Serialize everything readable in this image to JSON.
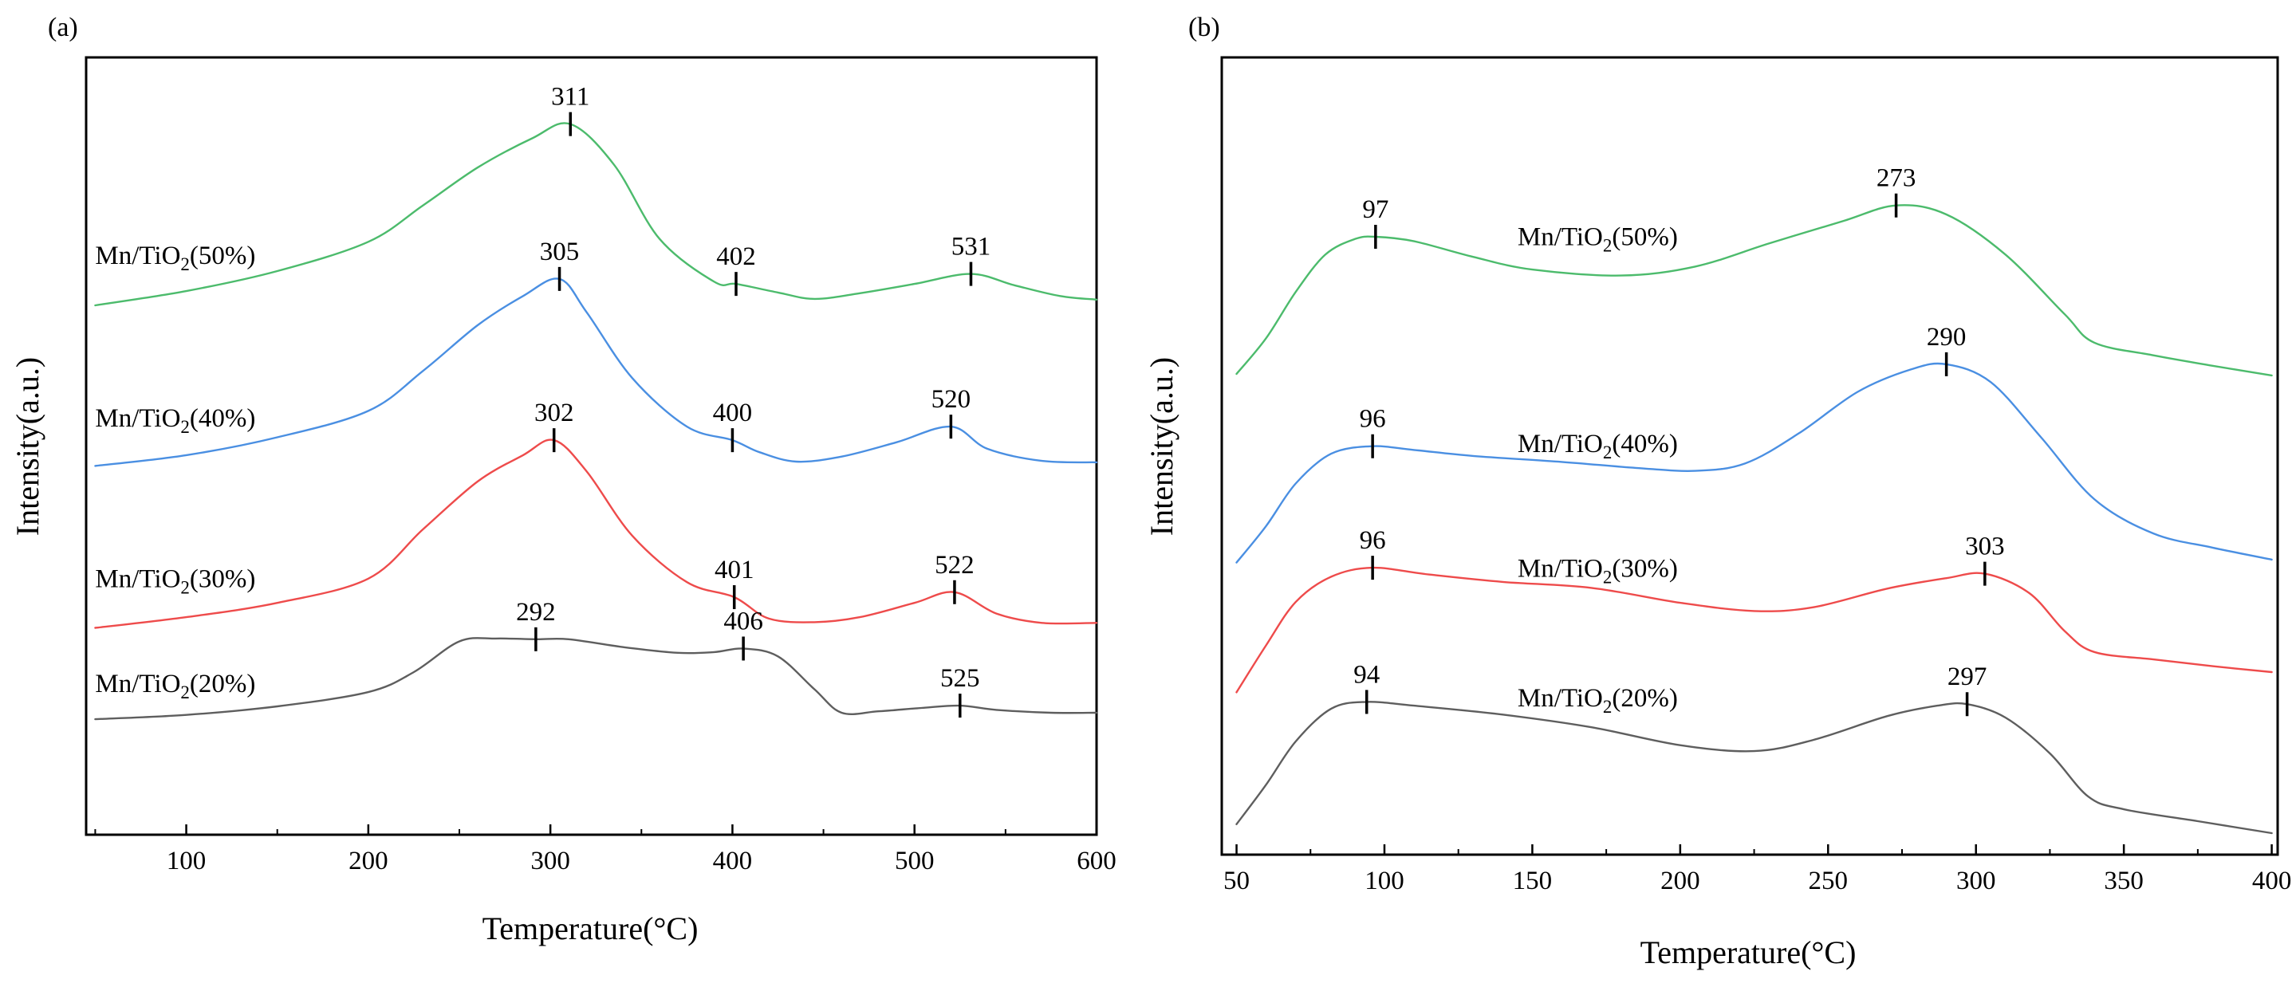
{
  "chart_data": [
    {
      "panel_label": "(a)",
      "type": "line",
      "xlabel": "Temperature(°C)",
      "ylabel": "Intensity(a.u.)",
      "xlim": [
        45,
        600
      ],
      "ylim": [
        0,
        100
      ],
      "x_ticks": [
        100,
        200,
        300,
        400,
        500,
        600
      ],
      "x_tick_labels": [
        "100",
        "200",
        "300",
        "400",
        "500",
        "600"
      ],
      "minor_x_ticks": [
        50,
        150,
        250,
        350,
        450,
        550
      ],
      "y_ticks_shown": false,
      "series": [
        {
          "name": "Mn/TiO2(50%)",
          "label_main": "Mn/TiO",
          "label_sub": "2",
          "label_suffix": "(50%)",
          "label_at": [
            50,
            75.3
          ],
          "color": "#4cbb6c",
          "points": [
            [
              50,
              69.5
            ],
            [
              100,
              71.5
            ],
            [
              150,
              74.3
            ],
            [
              200,
              78.4
            ],
            [
              230,
              83.5
            ],
            [
              260,
              88.8
            ],
            [
              290,
              92.9
            ],
            [
              311,
              94.9
            ],
            [
              335,
              89.2
            ],
            [
              360,
              78.8
            ],
            [
              390,
              72.8
            ],
            [
              402,
              72.5
            ],
            [
              425,
              71.3
            ],
            [
              445,
              70.4
            ],
            [
              470,
              71.2
            ],
            [
              500,
              72.5
            ],
            [
              531,
              73.9
            ],
            [
              555,
              72.3
            ],
            [
              580,
              70.8
            ],
            [
              600,
              70.3
            ]
          ],
          "peaks": [
            {
              "x": 311,
              "label": "311"
            },
            {
              "x": 402,
              "label": "402"
            },
            {
              "x": 531,
              "label": "531"
            }
          ]
        },
        {
          "name": "Mn/TiO2(40%)",
          "label_main": "Mn/TiO",
          "label_sub": "2",
          "label_suffix": "(40%)",
          "label_at": [
            50,
            52.5
          ],
          "color": "#4a8fe2",
          "points": [
            [
              50,
              47.0
            ],
            [
              100,
              48.5
            ],
            [
              150,
              51.0
            ],
            [
              200,
              54.7
            ],
            [
              230,
              60.3
            ],
            [
              260,
              66.7
            ],
            [
              285,
              70.8
            ],
            [
              305,
              73.2
            ],
            [
              320,
              68.5
            ],
            [
              345,
              59.3
            ],
            [
              375,
              52.5
            ],
            [
              400,
              50.6
            ],
            [
              415,
              48.9
            ],
            [
              435,
              47.6
            ],
            [
              460,
              48.3
            ],
            [
              490,
              50.3
            ],
            [
              520,
              52.5
            ],
            [
              540,
              49.4
            ],
            [
              570,
              47.7
            ],
            [
              600,
              47.5
            ]
          ],
          "peaks": [
            {
              "x": 305,
              "label": "305"
            },
            {
              "x": 400,
              "label": "400"
            },
            {
              "x": 520,
              "label": "520"
            }
          ]
        },
        {
          "name": "Mn/TiO2(30%)",
          "label_main": "Mn/TiO",
          "label_sub": "2",
          "label_suffix": "(30%)",
          "label_at": [
            50,
            30.0
          ],
          "color": "#ee4b4b",
          "points": [
            [
              50,
              24.3
            ],
            [
              100,
              25.8
            ],
            [
              150,
              27.8
            ],
            [
              200,
              31.2
            ],
            [
              230,
              38.1
            ],
            [
              260,
              44.8
            ],
            [
              285,
              48.5
            ],
            [
              302,
              50.6
            ],
            [
              320,
              46.2
            ],
            [
              345,
              37.2
            ],
            [
              375,
              30.7
            ],
            [
              401,
              28.6
            ],
            [
              420,
              25.6
            ],
            [
              445,
              25.1
            ],
            [
              470,
              25.8
            ],
            [
              500,
              27.8
            ],
            [
              522,
              29.3
            ],
            [
              545,
              26.3
            ],
            [
              570,
              25.0
            ],
            [
              600,
              25.0
            ]
          ],
          "peaks": [
            {
              "x": 302,
              "label": "302"
            },
            {
              "x": 401,
              "label": "401"
            },
            {
              "x": 522,
              "label": "522"
            }
          ]
        },
        {
          "name": "Mn/TiO2(20%)",
          "label_main": "Mn/TiO",
          "label_sub": "2",
          "label_suffix": "(20%)",
          "label_at": [
            50,
            15.3
          ],
          "color": "#5e5e5e",
          "points": [
            [
              50,
              11.5
            ],
            [
              100,
              12.1
            ],
            [
              150,
              13.3
            ],
            [
              200,
              15.3
            ],
            [
              225,
              18.1
            ],
            [
              250,
              22.4
            ],
            [
              270,
              22.8
            ],
            [
              292,
              22.7
            ],
            [
              310,
              22.7
            ],
            [
              340,
              21.6
            ],
            [
              370,
              20.8
            ],
            [
              390,
              20.9
            ],
            [
              406,
              21.4
            ],
            [
              425,
              20.3
            ],
            [
              445,
              15.7
            ],
            [
              460,
              12.4
            ],
            [
              480,
              12.6
            ],
            [
              505,
              13.1
            ],
            [
              525,
              13.4
            ],
            [
              545,
              12.8
            ],
            [
              575,
              12.4
            ],
            [
              600,
              12.4
            ]
          ],
          "peaks": [
            {
              "x": 292,
              "label": "292"
            },
            {
              "x": 406,
              "label": "406"
            },
            {
              "x": 525,
              "label": "525"
            }
          ]
        }
      ]
    },
    {
      "panel_label": "(b)",
      "type": "line",
      "xlabel": "Temperature(°C)",
      "ylabel": "Intensity(a.u.)",
      "xlim": [
        45,
        402
      ],
      "ylim": [
        0,
        100
      ],
      "x_ticks": [
        50,
        100,
        150,
        200,
        250,
        300,
        350,
        400
      ],
      "x_tick_labels": [
        "50",
        "100",
        "150",
        "200",
        "250",
        "300",
        "350",
        "400"
      ],
      "minor_x_ticks": [
        75,
        125,
        175,
        225,
        275,
        325,
        375
      ],
      "y_ticks_shown": false,
      "series": [
        {
          "name": "Mn/TiO2(50%)",
          "label_main": "Mn/TiO",
          "label_sub": "2",
          "label_suffix": "(50%)",
          "label_at": [
            145,
            78.9
          ],
          "color": "#4cbb6c",
          "points": [
            [
              50,
              61.6
            ],
            [
              60,
              66.4
            ],
            [
              70,
              72.6
            ],
            [
              80,
              77.6
            ],
            [
              90,
              79.7
            ],
            [
              97,
              80.0
            ],
            [
              110,
              79.4
            ],
            [
              130,
              77.3
            ],
            [
              150,
              75.6
            ],
            [
              180,
              74.8
            ],
            [
              205,
              76.0
            ],
            [
              230,
              79.1
            ],
            [
              255,
              82.1
            ],
            [
              273,
              84.2
            ],
            [
              290,
              83.0
            ],
            [
              310,
              77.6
            ],
            [
              330,
              69.6
            ],
            [
              340,
              65.8
            ],
            [
              360,
              64.1
            ],
            [
              380,
              62.7
            ],
            [
              400,
              61.4
            ]
          ],
          "peaks": [
            {
              "x": 97,
              "label": "97"
            },
            {
              "x": 273,
              "label": "273"
            }
          ]
        },
        {
          "name": "Mn/TiO2(40%)",
          "label_main": "Mn/TiO",
          "label_sub": "2",
          "label_suffix": "(40%)",
          "label_at": [
            145,
            51.1
          ],
          "color": "#4a8fe2",
          "points": [
            [
              50,
              36.3
            ],
            [
              60,
              41.2
            ],
            [
              70,
              46.9
            ],
            [
              82,
              50.9
            ],
            [
              96,
              51.9
            ],
            [
              110,
              51.4
            ],
            [
              130,
              50.6
            ],
            [
              160,
              49.8
            ],
            [
              185,
              49.0
            ],
            [
              205,
              48.6
            ],
            [
              222,
              49.6
            ],
            [
              240,
              53.6
            ],
            [
              260,
              59.2
            ],
            [
              278,
              62.2
            ],
            [
              290,
              62.9
            ],
            [
              305,
              60.5
            ],
            [
              322,
              53.1
            ],
            [
              340,
              44.8
            ],
            [
              360,
              40.2
            ],
            [
              380,
              38.3
            ],
            [
              400,
              36.7
            ]
          ],
          "peaks": [
            {
              "x": 96,
              "label": "96"
            },
            {
              "x": 290,
              "label": "290"
            }
          ]
        },
        {
          "name": "Mn/TiO2(30%)",
          "label_main": "Mn/TiO",
          "label_sub": "2",
          "label_suffix": "(30%)",
          "label_at": [
            145,
            34.4
          ],
          "color": "#ee4b4b",
          "points": [
            [
              50,
              18.9
            ],
            [
              60,
              25.2
            ],
            [
              70,
              31.0
            ],
            [
              82,
              34.4
            ],
            [
              96,
              35.6
            ],
            [
              115,
              34.7
            ],
            [
              140,
              33.7
            ],
            [
              170,
              32.9
            ],
            [
              200,
              30.9
            ],
            [
              225,
              29.8
            ],
            [
              245,
              30.3
            ],
            [
              270,
              32.8
            ],
            [
              290,
              34.2
            ],
            [
              303,
              34.8
            ],
            [
              318,
              32.2
            ],
            [
              330,
              27.1
            ],
            [
              340,
              24.3
            ],
            [
              360,
              23.3
            ],
            [
              380,
              22.4
            ],
            [
              400,
              21.6
            ]
          ],
          "peaks": [
            {
              "x": 96,
              "label": "96"
            },
            {
              "x": 303,
              "label": "303"
            }
          ]
        },
        {
          "name": "Mn/TiO2(20%)",
          "label_main": "Mn/TiO",
          "label_sub": "2",
          "label_suffix": "(20%)",
          "label_at": [
            145,
            17.0
          ],
          "color": "#5e5e5e",
          "points": [
            [
              50,
              1.2
            ],
            [
              60,
              6.5
            ],
            [
              70,
              12.3
            ],
            [
              82,
              16.7
            ],
            [
              94,
              17.6
            ],
            [
              110,
              17.1
            ],
            [
              140,
              15.9
            ],
            [
              170,
              14.2
            ],
            [
              200,
              11.8
            ],
            [
              225,
              11.0
            ],
            [
              245,
              12.5
            ],
            [
              270,
              15.7
            ],
            [
              287,
              17.1
            ],
            [
              297,
              17.3
            ],
            [
              310,
              15.5
            ],
            [
              325,
              10.7
            ],
            [
              338,
              4.9
            ],
            [
              350,
              3.2
            ],
            [
              375,
              1.6
            ],
            [
              400,
              0.0
            ]
          ],
          "peaks": [
            {
              "x": 94,
              "label": "94"
            },
            {
              "x": 297,
              "label": "297"
            }
          ]
        }
      ]
    }
  ]
}
